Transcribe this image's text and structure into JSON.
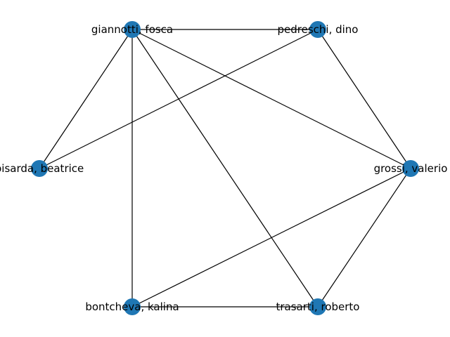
{
  "graph": {
    "node_color": "#1f77b4",
    "edge_color": "#000000",
    "nodes": [
      {
        "id": "giannotti",
        "label": "giannotti, fosca"
      },
      {
        "id": "pedreschi",
        "label": "pedreschi, dino"
      },
      {
        "id": "grossi",
        "label": "grossi, valerio"
      },
      {
        "id": "trasarti",
        "label": "trasarti, roberto"
      },
      {
        "id": "bontcheva",
        "label": "bontcheva, kalina"
      },
      {
        "id": "pisarda",
        "label": "pisarda, beatrice"
      }
    ],
    "edges": [
      [
        "giannotti",
        "pedreschi"
      ],
      [
        "giannotti",
        "pisarda"
      ],
      [
        "giannotti",
        "grossi"
      ],
      [
        "giannotti",
        "bontcheva"
      ],
      [
        "giannotti",
        "trasarti"
      ],
      [
        "pedreschi",
        "pisarda"
      ],
      [
        "pedreschi",
        "grossi"
      ],
      [
        "grossi",
        "bontcheva"
      ],
      [
        "grossi",
        "trasarti"
      ],
      [
        "bontcheva",
        "trasarti"
      ]
    ]
  }
}
